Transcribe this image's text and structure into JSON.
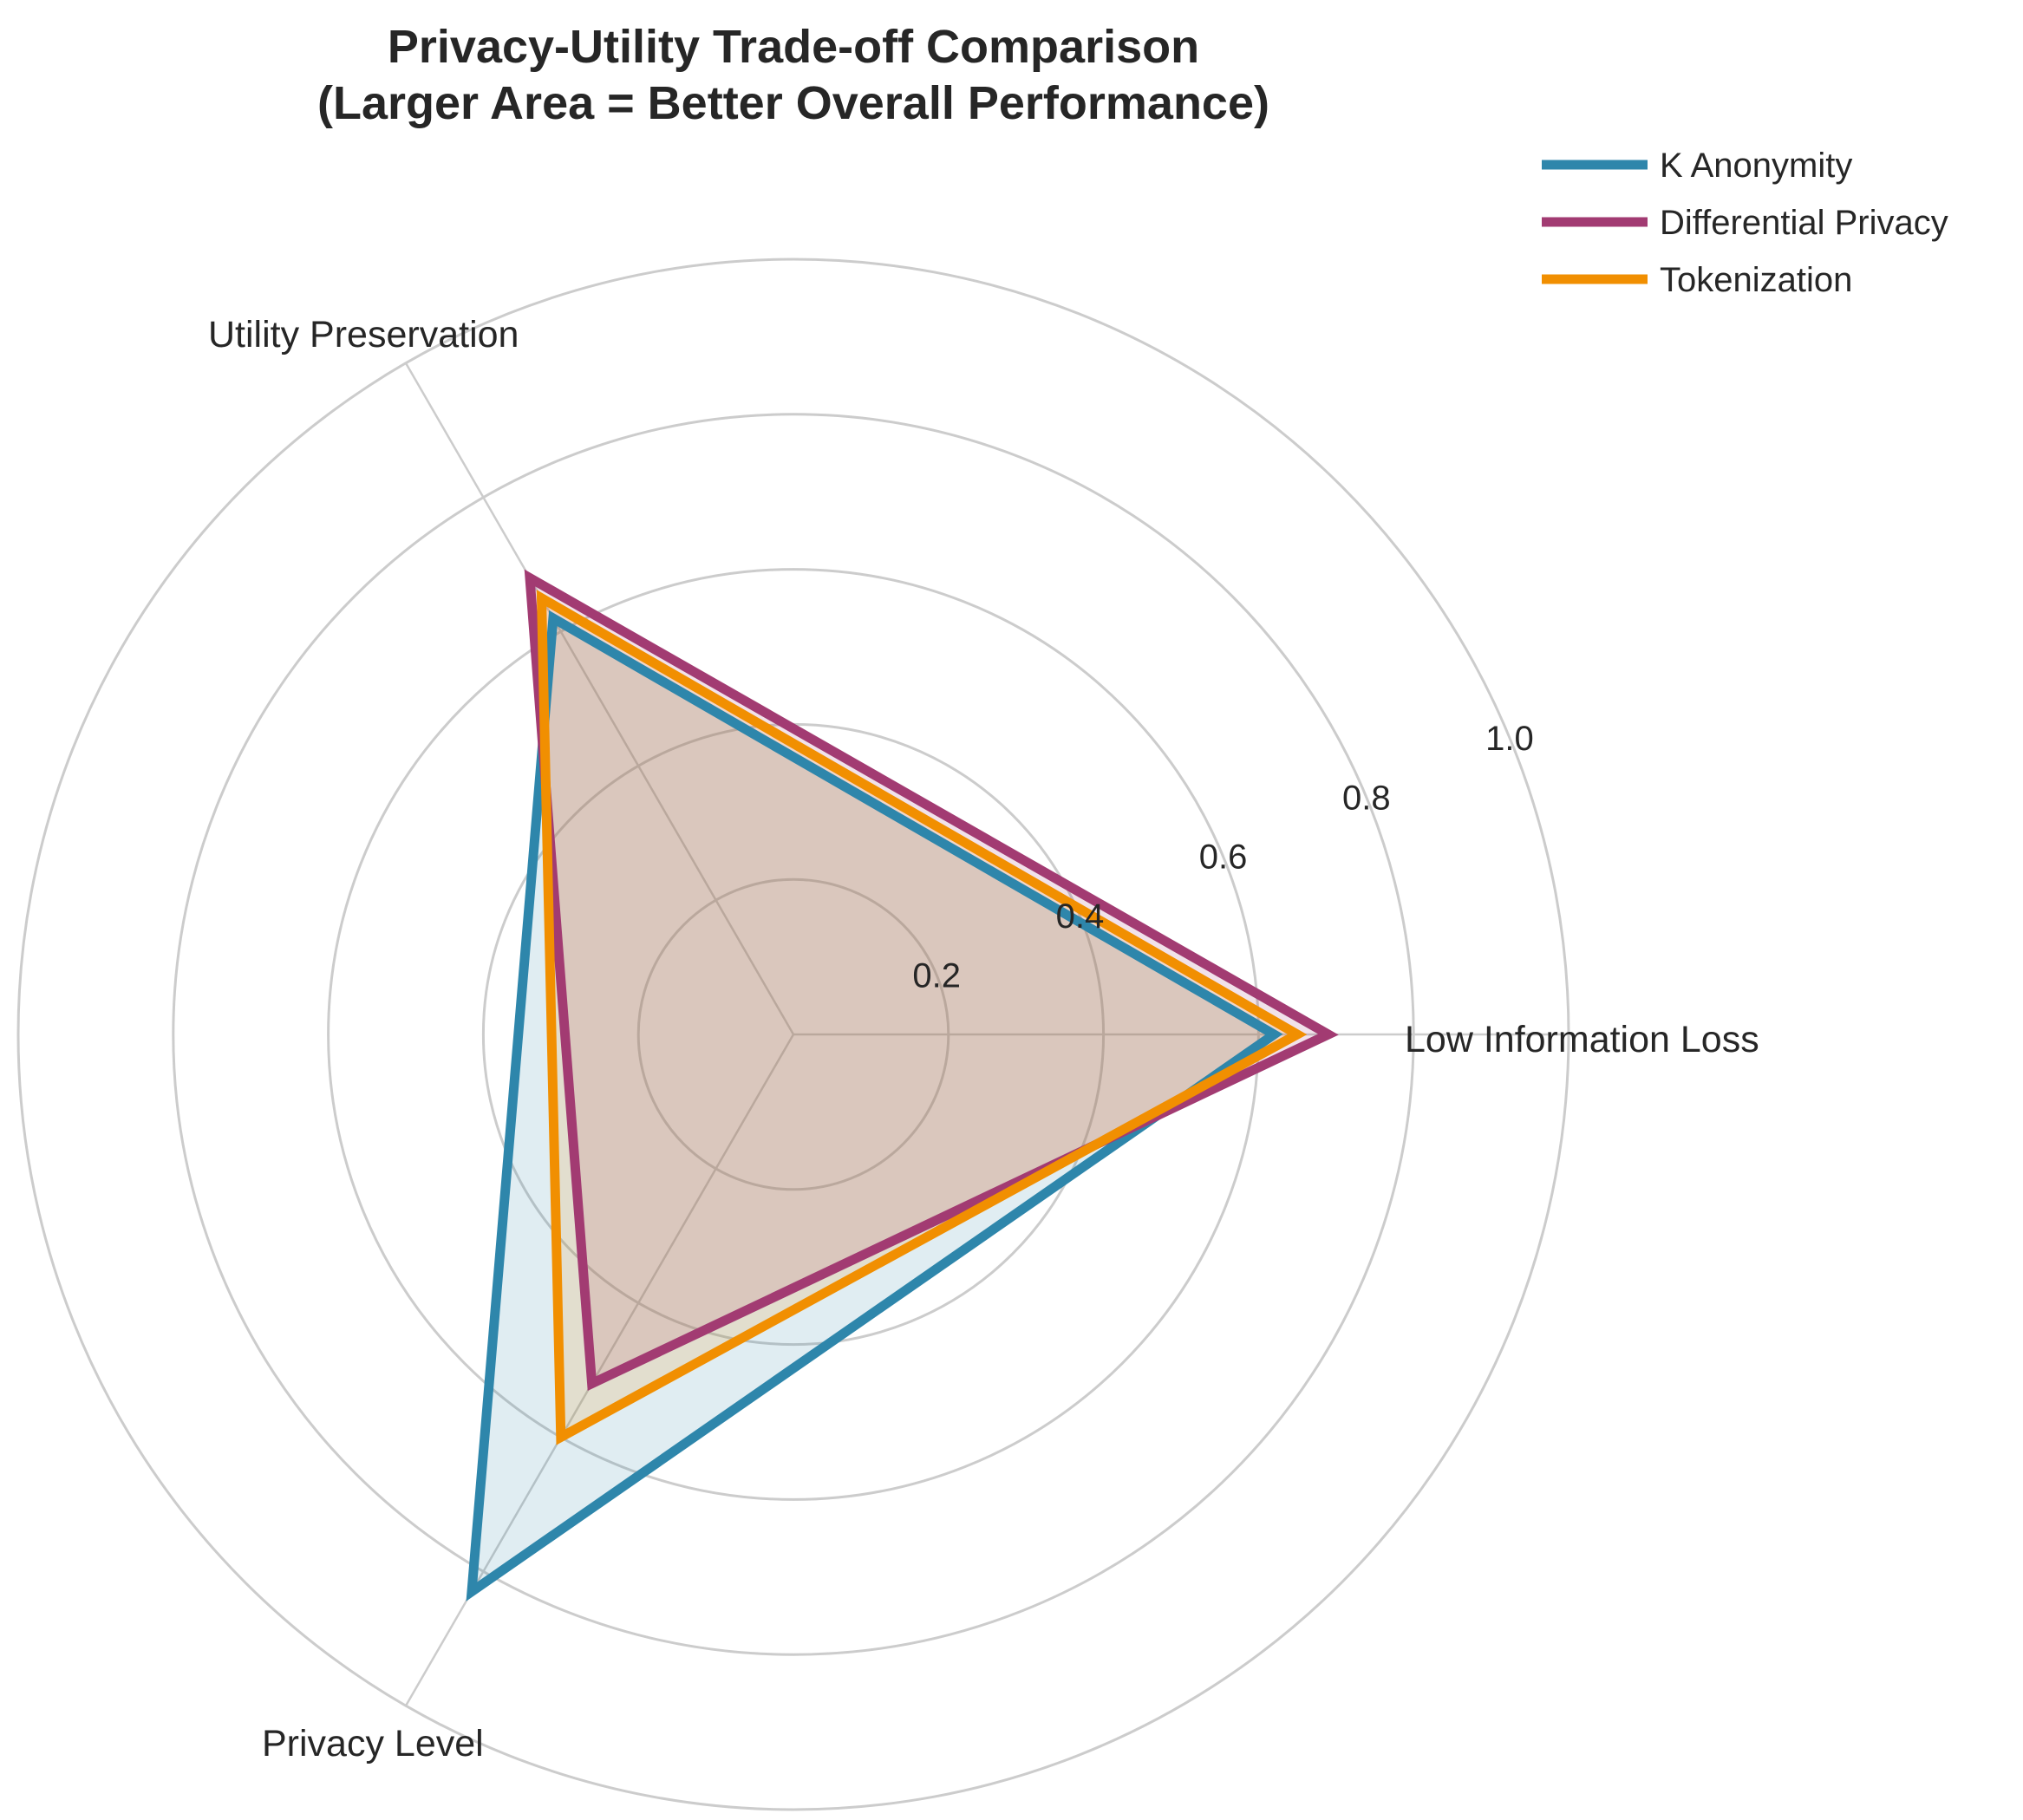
{
  "chart_data": {
    "type": "radar",
    "title": "Privacy-Utility Trade-off Comparison",
    "subtitle": "(Larger Area = Better Overall Performance)",
    "axes": [
      "Low Information Loss",
      "Utility Preservation",
      "Privacy Level"
    ],
    "radial_ticks": [
      "0.2",
      "0.4",
      "0.6",
      "0.8",
      "1.0"
    ],
    "rlim": [
      0,
      1.0
    ],
    "grid": true,
    "legend_position": "top-right",
    "series": [
      {
        "name": "K Anonymity",
        "color": "#2e86ab",
        "values": [
          0.62,
          0.62,
          0.83
        ]
      },
      {
        "name": "Differential Privacy",
        "color": "#a23b72",
        "values": [
          0.69,
          0.68,
          0.52
        ]
      },
      {
        "name": "Tokenization",
        "color": "#f18f01",
        "values": [
          0.65,
          0.65,
          0.6
        ]
      }
    ]
  }
}
